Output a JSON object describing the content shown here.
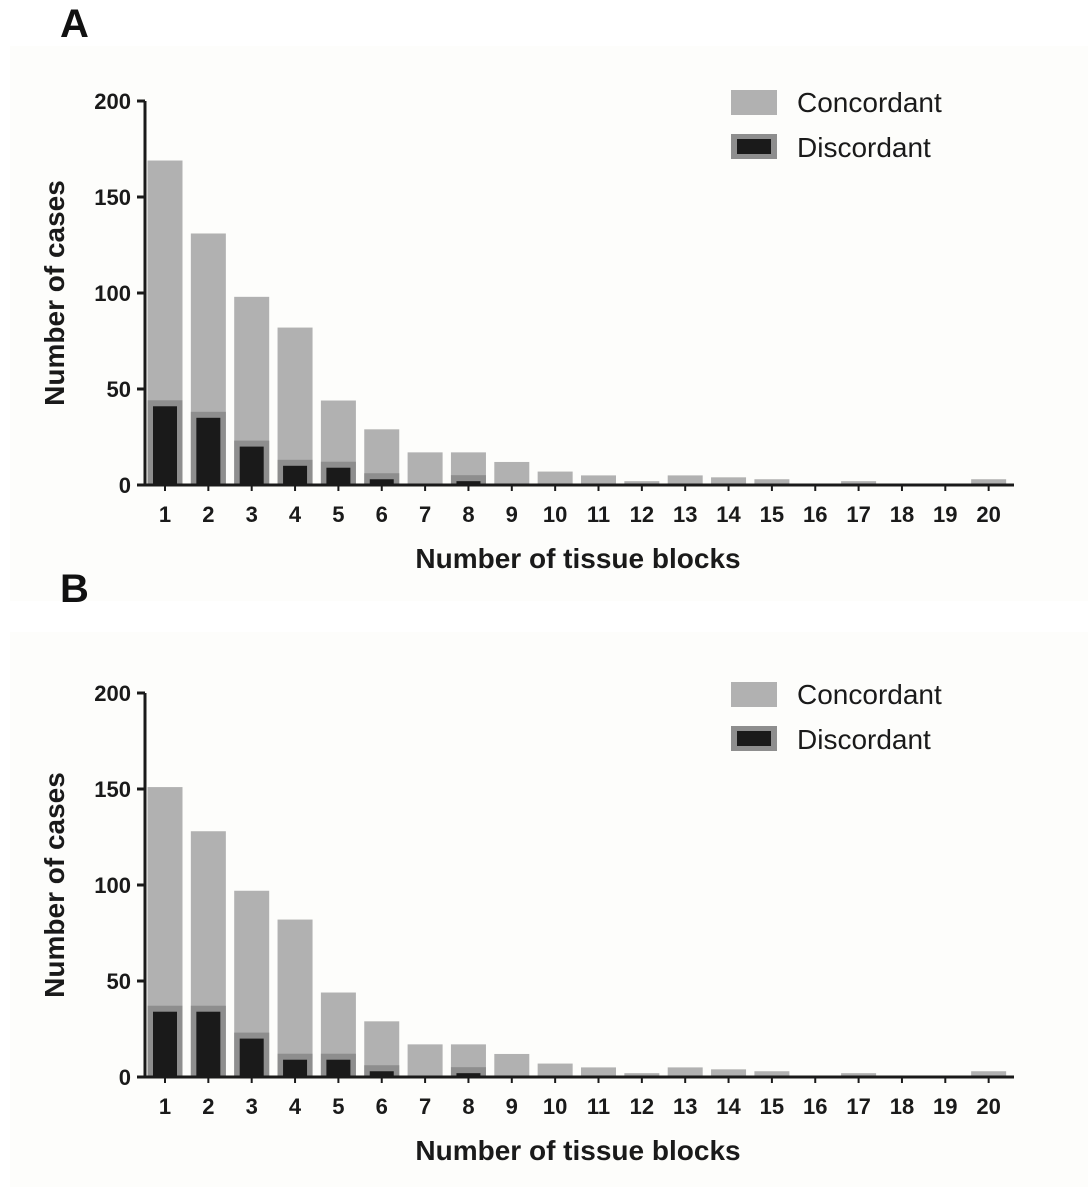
{
  "chart_data": [
    {
      "panel": "A",
      "type": "bar",
      "xlabel": "Number of tissue blocks",
      "ylabel": "Number of cases",
      "ylim": [
        0,
        200
      ],
      "yticks": [
        0,
        50,
        100,
        150,
        200
      ],
      "legend_position": "top-right",
      "categories": [
        "1",
        "2",
        "3",
        "4",
        "5",
        "6",
        "7",
        "8",
        "9",
        "10",
        "11",
        "12",
        "13",
        "14",
        "15",
        "16",
        "17",
        "18",
        "19",
        "20"
      ],
      "series": [
        {
          "name": "Concordant",
          "color": "#b1b1b1",
          "values": [
            169,
            131,
            98,
            82,
            44,
            29,
            17,
            17,
            12,
            7,
            5,
            2,
            5,
            4,
            3,
            0,
            2,
            0,
            0,
            3
          ]
        },
        {
          "name": "Discordant",
          "color": "#1a1a1a",
          "values": [
            41,
            35,
            20,
            10,
            9,
            3,
            0,
            2,
            0,
            0,
            0,
            0,
            0,
            0,
            0,
            0,
            0,
            0,
            0,
            0
          ]
        }
      ]
    },
    {
      "panel": "B",
      "type": "bar",
      "xlabel": "Number of tissue blocks",
      "ylabel": "Number of cases",
      "ylim": [
        0,
        200
      ],
      "yticks": [
        0,
        50,
        100,
        150,
        200
      ],
      "legend_position": "top-right",
      "categories": [
        "1",
        "2",
        "3",
        "4",
        "5",
        "6",
        "7",
        "8",
        "9",
        "10",
        "11",
        "12",
        "13",
        "14",
        "15",
        "16",
        "17",
        "18",
        "19",
        "20"
      ],
      "series": [
        {
          "name": "Concordant",
          "color": "#b1b1b1",
          "values": [
            151,
            128,
            97,
            82,
            44,
            29,
            17,
            17,
            12,
            7,
            5,
            2,
            5,
            4,
            3,
            0,
            2,
            0,
            0,
            3
          ]
        },
        {
          "name": "Discordant",
          "color": "#1a1a1a",
          "values": [
            34,
            34,
            20,
            9,
            9,
            3,
            0,
            2,
            0,
            0,
            0,
            0,
            0,
            0,
            0,
            0,
            0,
            0,
            0,
            0
          ]
        }
      ]
    }
  ]
}
